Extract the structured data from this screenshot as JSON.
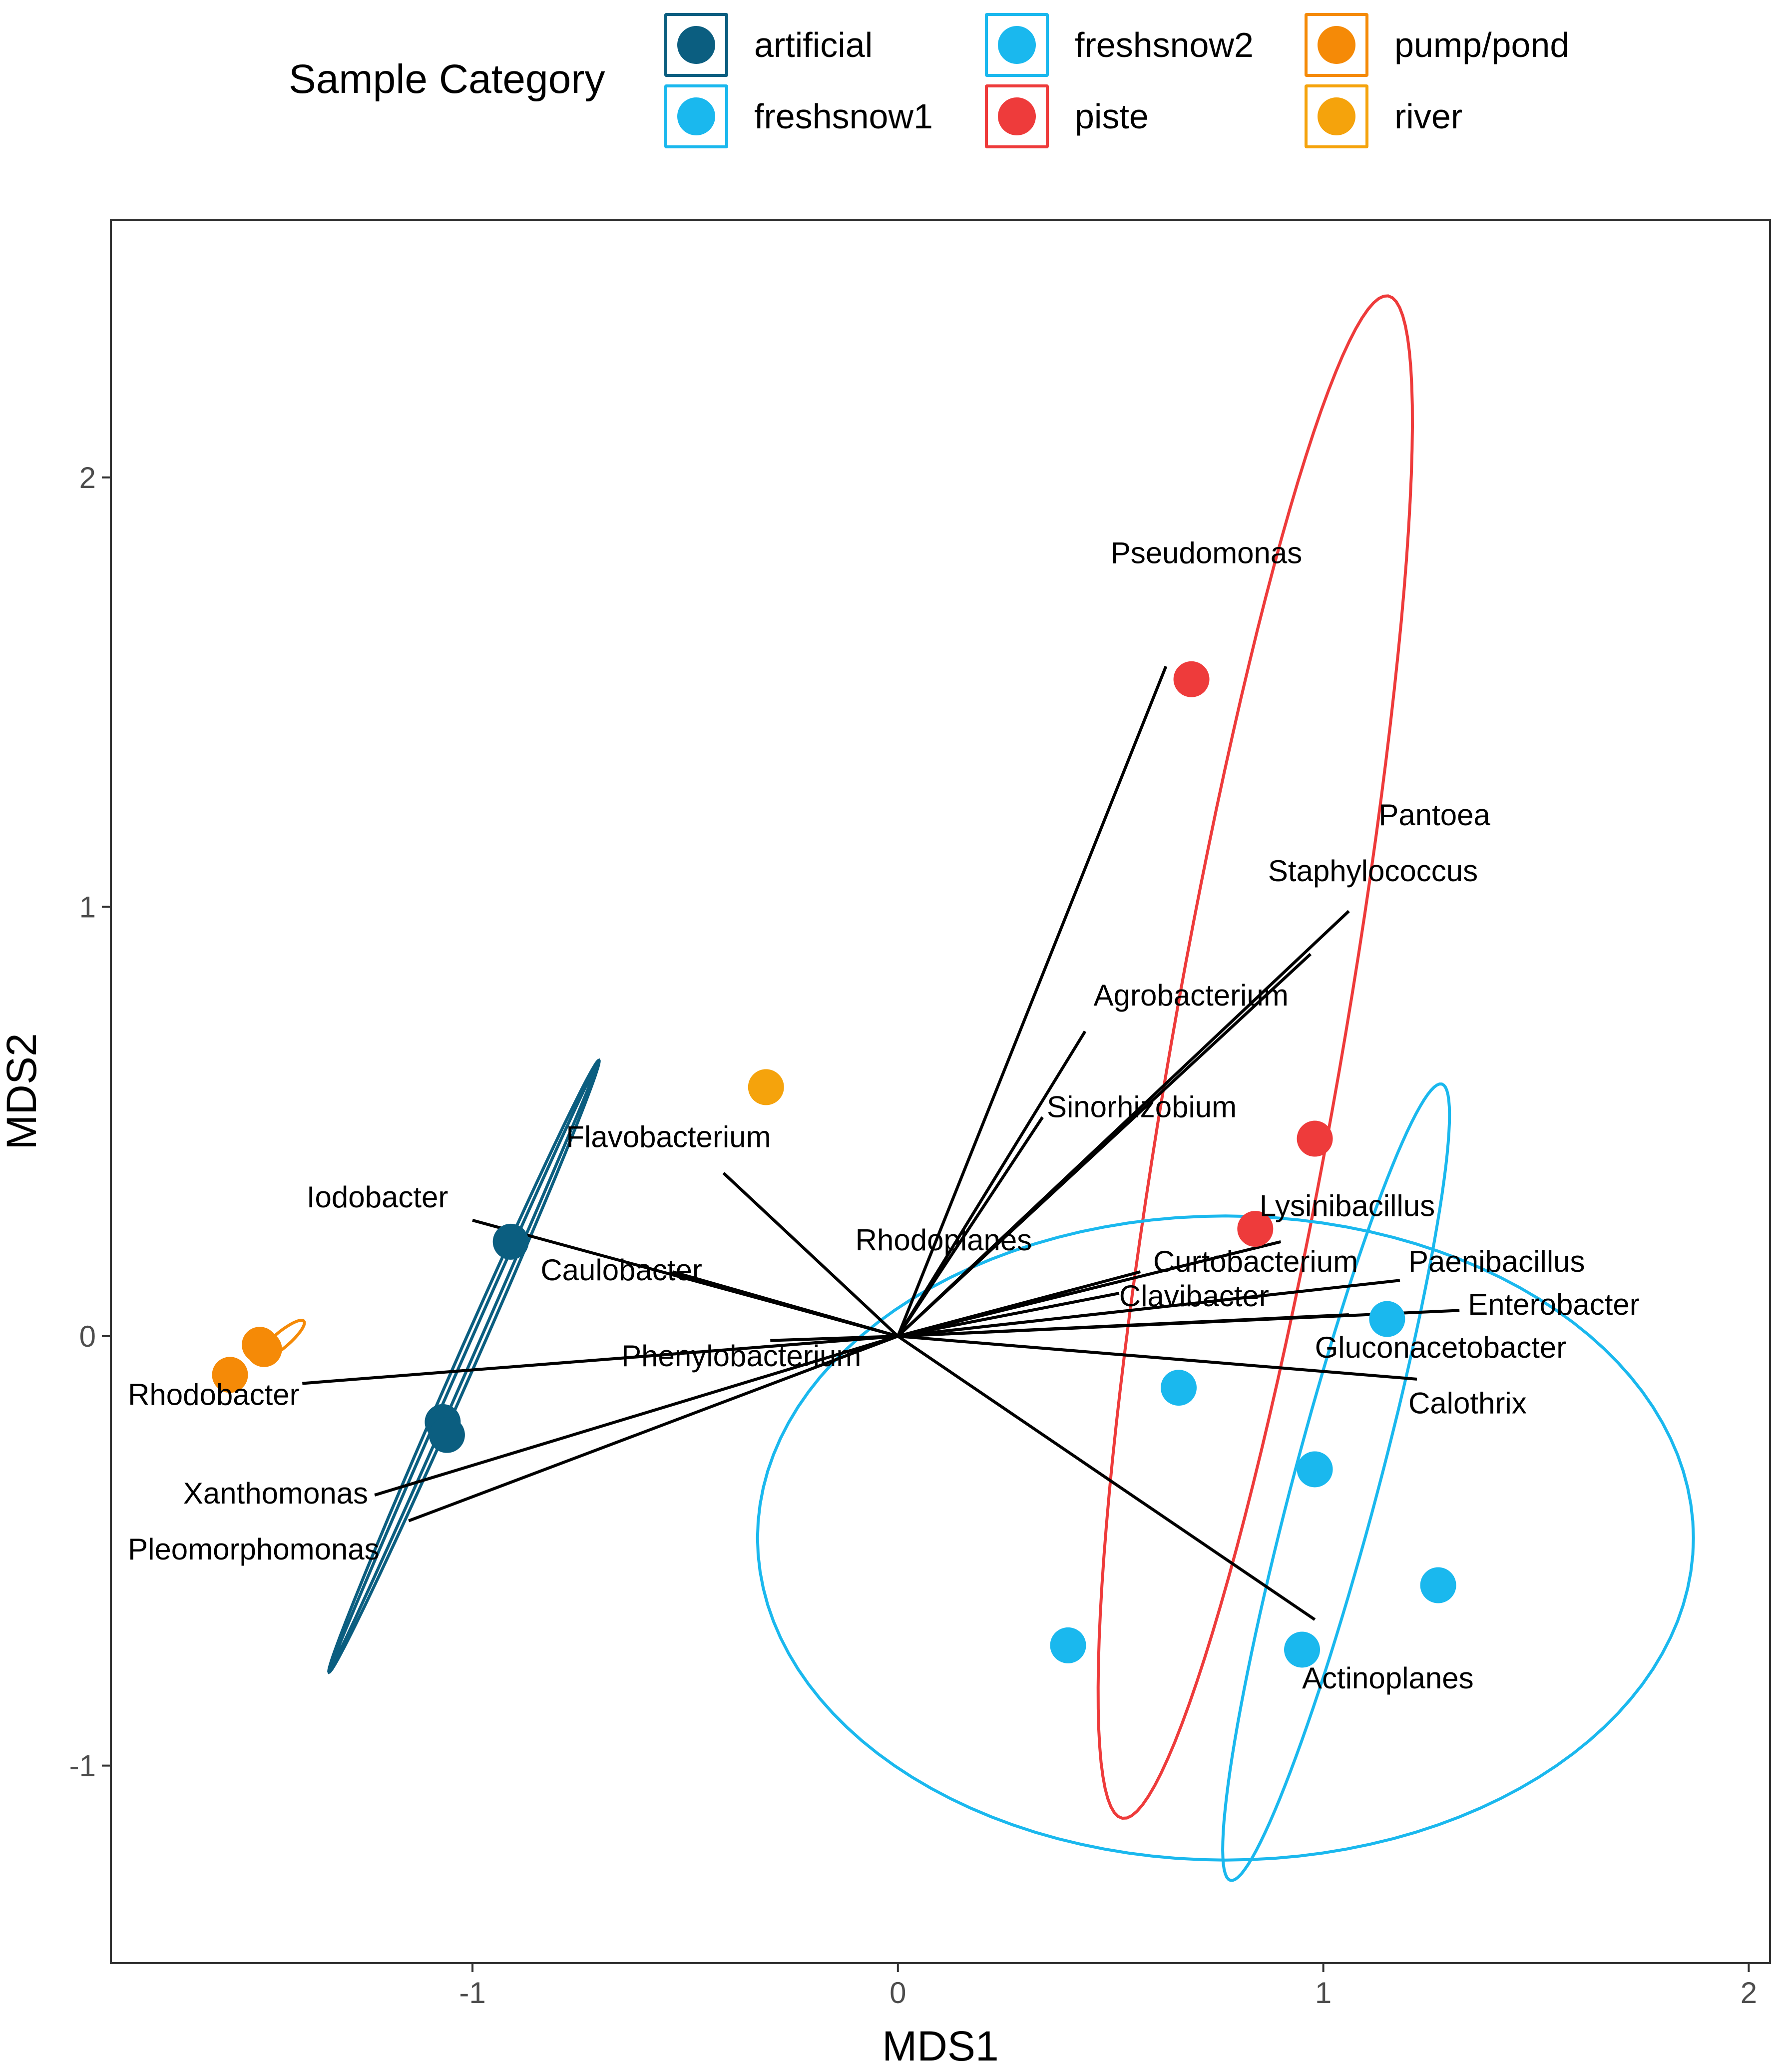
{
  "legend": {
    "title": "Sample Category",
    "items": [
      {
        "label": "artificial",
        "color": "#0b5e80"
      },
      {
        "label": "freshsnow1",
        "color": "#1ab8ee"
      },
      {
        "label": "freshsnow2",
        "color": "#1ab8ee"
      },
      {
        "label": "piste",
        "color": "#ee3b3b"
      },
      {
        "label": "pump/pond",
        "color": "#f58a07"
      },
      {
        "label": "river",
        "color": "#f5a30c"
      }
    ]
  },
  "chart_data": {
    "type": "scatter",
    "xlabel": "MDS1",
    "ylabel": "MDS2",
    "xlim": [
      -1.85,
      2.05
    ],
    "ylim": [
      -1.46,
      2.6
    ],
    "xticks": [
      -1,
      0,
      1,
      2
    ],
    "yticks": [
      -1,
      0,
      1,
      2
    ],
    "xtick_labels": [
      "-1",
      "0",
      "1",
      "2"
    ],
    "ytick_labels": [
      "-1",
      "0",
      "1",
      "2"
    ],
    "grid": false,
    "legend_position": "top",
    "points": [
      {
        "category": "artificial",
        "x": -0.91,
        "y": 0.22
      },
      {
        "category": "artificial",
        "x": -1.07,
        "y": -0.2
      },
      {
        "category": "artificial",
        "x": -1.06,
        "y": -0.23
      },
      {
        "category": "pump/pond",
        "x": -1.5,
        "y": -0.02
      },
      {
        "category": "pump/pond",
        "x": -1.49,
        "y": -0.03
      },
      {
        "category": "pump/pond",
        "x": -1.57,
        "y": -0.09
      },
      {
        "category": "river",
        "x": -0.31,
        "y": 0.58
      },
      {
        "category": "piste",
        "x": 0.69,
        "y": 1.53
      },
      {
        "category": "piste",
        "x": 0.98,
        "y": 0.46
      },
      {
        "category": "piste",
        "x": 0.84,
        "y": 0.25
      },
      {
        "category": "freshsnow1",
        "x": 1.15,
        "y": 0.04
      },
      {
        "category": "freshsnow1",
        "x": 0.66,
        "y": -0.12
      },
      {
        "category": "freshsnow1",
        "x": 0.98,
        "y": -0.31
      },
      {
        "category": "freshsnow1",
        "x": 1.27,
        "y": -0.58
      },
      {
        "category": "freshsnow1",
        "x": 0.4,
        "y": -0.72
      },
      {
        "category": "freshsnow1",
        "x": 0.95,
        "y": -0.73
      }
    ],
    "ellipses": [
      {
        "category": "artificial",
        "cx": -1.02,
        "cy": -0.07,
        "rx": 0.78,
        "ry": 0.022,
        "angle_deg": 66,
        "double_line": true
      },
      {
        "category": "pump/pond",
        "cx": -1.45,
        "cy": -0.01,
        "rx": 0.07,
        "ry": 0.018,
        "angle_deg": 40,
        "double_line": false
      },
      {
        "category": "piste",
        "cx": 0.84,
        "cy": 0.65,
        "rx": 1.8,
        "ry": 0.2,
        "angle_deg": 80,
        "double_line": false
      },
      {
        "category": "freshsnow1",
        "cx": 0.77,
        "cy": -0.47,
        "rx": 1.1,
        "ry": 0.75,
        "angle_deg": 0,
        "double_line": false
      },
      {
        "category": "freshsnow2",
        "cx": 1.03,
        "cy": -0.34,
        "rx": 0.96,
        "ry": 0.1,
        "angle_deg": 75,
        "double_line": false
      }
    ],
    "vectors": [
      {
        "name": "Pseudomonas",
        "x": 0.63,
        "y": 1.56,
        "label_x": 0.5,
        "label_y": 1.8
      },
      {
        "name": "Pantoea",
        "x": 1.06,
        "y": 0.99,
        "label_x": 1.13,
        "label_y": 1.19
      },
      {
        "name": "Staphylococcus",
        "x": 0.97,
        "y": 0.89,
        "label_x": 0.87,
        "label_y": 1.06
      },
      {
        "name": "Agrobacterium",
        "x": 0.44,
        "y": 0.71,
        "label_x": 0.46,
        "label_y": 0.77
      },
      {
        "name": "Sinorhizobium",
        "x": 0.34,
        "y": 0.51,
        "label_x": 0.35,
        "label_y": 0.51
      },
      {
        "name": "Flavobacterium",
        "x": -0.41,
        "y": 0.38,
        "label_x": -0.78,
        "label_y": 0.44
      },
      {
        "name": "Iodobacter",
        "x": -1.0,
        "y": 0.27,
        "label_x": -1.39,
        "label_y": 0.3
      },
      {
        "name": "Caulobacter",
        "x": -0.53,
        "y": 0.15,
        "label_x": -0.84,
        "label_y": 0.13
      },
      {
        "name": "Rhodoplanes",
        "x": 0.09,
        "y": 0.14,
        "label_x": -0.1,
        "label_y": 0.2
      },
      {
        "name": "Lysinibacillus",
        "x": 0.9,
        "y": 0.22,
        "label_x": 0.85,
        "label_y": 0.28
      },
      {
        "name": "Curtobacterium",
        "x": 0.57,
        "y": 0.15,
        "label_x": 0.6,
        "label_y": 0.15
      },
      {
        "name": "Paenibacillus",
        "x": 1.18,
        "y": 0.13,
        "label_x": 1.2,
        "label_y": 0.15
      },
      {
        "name": "Clavibacter",
        "x": 0.52,
        "y": 0.1,
        "label_x": 0.52,
        "label_y": 0.07
      },
      {
        "name": "Enterobacter",
        "x": 1.32,
        "y": 0.06,
        "label_x": 1.34,
        "label_y": 0.05
      },
      {
        "name": "Gluconacetobacter",
        "x": 1.06,
        "y": 0.05,
        "label_x": 0.98,
        "label_y": -0.05
      },
      {
        "name": "Calothrix",
        "x": 1.22,
        "y": -0.1,
        "label_x": 1.2,
        "label_y": -0.18
      },
      {
        "name": "Phenylobacterium",
        "x": -0.3,
        "y": -0.01,
        "label_x": -0.65,
        "label_y": -0.07
      },
      {
        "name": "Rhodobacter",
        "x": -1.4,
        "y": -0.11,
        "label_x": -1.81,
        "label_y": -0.16
      },
      {
        "name": "Xanthomonas",
        "x": -1.23,
        "y": -0.37,
        "label_x": -1.68,
        "label_y": -0.39
      },
      {
        "name": "Pleomorphomonas",
        "x": -1.15,
        "y": -0.43,
        "label_x": -1.81,
        "label_y": -0.52
      },
      {
        "name": "Actinoplanes",
        "x": 0.98,
        "y": -0.66,
        "label_x": 0.95,
        "label_y": -0.82
      }
    ]
  }
}
